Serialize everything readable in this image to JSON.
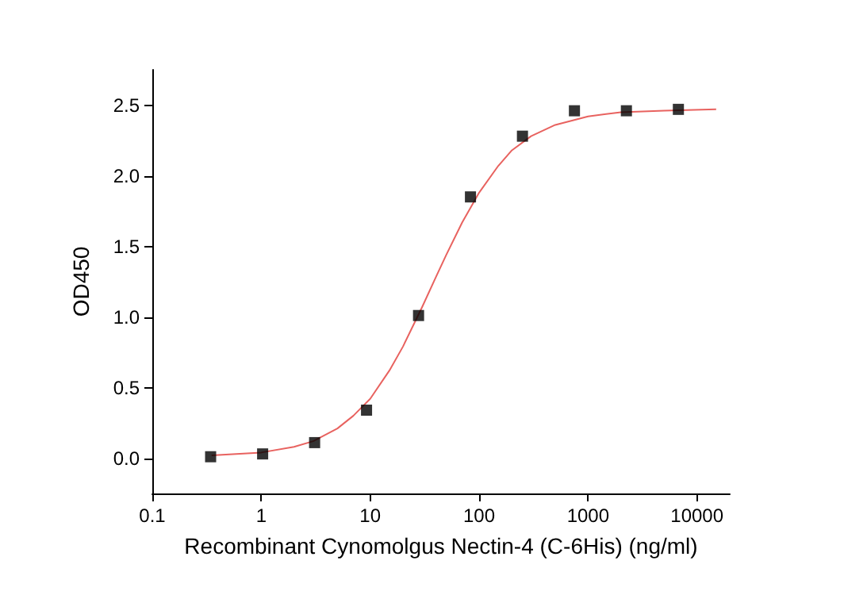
{
  "chart_data": {
    "type": "scatter",
    "xlabel": "Recombinant Cynomolgus Nectin-4 (C-6His) (ng/ml)",
    "ylabel": "OD450",
    "log": "x",
    "grid": false,
    "xlim": [
      0.1,
      20000
    ],
    "xticks": [
      0.1,
      1,
      10,
      100,
      1000,
      10000
    ],
    "ylim": [
      -0.25,
      2.75
    ],
    "yticks": [
      {
        "value": 0,
        "label": "0.0"
      },
      {
        "value": 0.5,
        "label": "0.5"
      },
      {
        "value": 1,
        "label": "1.0"
      },
      {
        "value": 1.5,
        "label": "1.5"
      },
      {
        "value": 2,
        "label": "2.0"
      },
      {
        "value": 2.5,
        "label": "2.5"
      }
    ],
    "series": [
      {
        "marker": "square",
        "color": "#000000",
        "x": [
          0.343,
          1.03,
          3.09,
          9.26,
          27.8,
          83.3,
          250,
          750,
          2250,
          6750
        ],
        "values": [
          0.01,
          0.03,
          0.11,
          0.34,
          1.01,
          1.85,
          2.28,
          2.46,
          2.46,
          2.47
        ]
      },
      {
        "type": "line",
        "marker": "none",
        "color": "#e8625f",
        "x": [
          0.35,
          1,
          2,
          3,
          5,
          7,
          10,
          15,
          20,
          30,
          40,
          50,
          70,
          100,
          150,
          200,
          300,
          500,
          1000,
          2000,
          5000,
          15000
        ],
        "values": [
          0.02,
          0.04,
          0.08,
          0.12,
          0.21,
          0.3,
          0.42,
          0.62,
          0.79,
          1.07,
          1.28,
          1.44,
          1.67,
          1.88,
          2.07,
          2.18,
          2.28,
          2.36,
          2.42,
          2.45,
          2.46,
          2.47
        ]
      }
    ]
  }
}
